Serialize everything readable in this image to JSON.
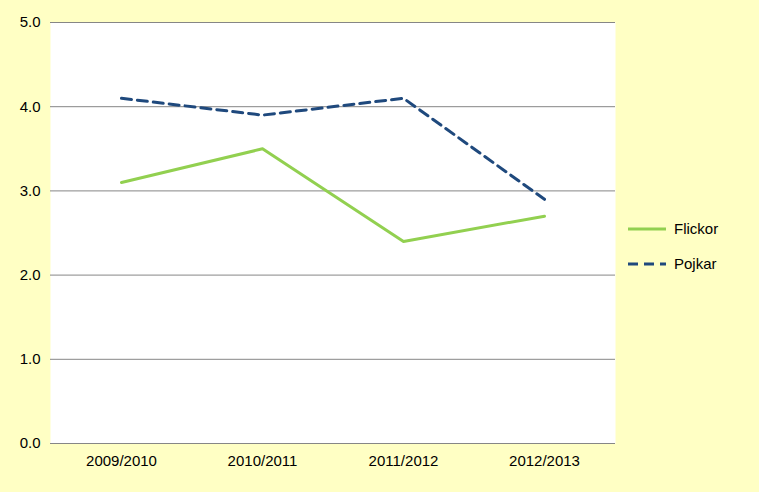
{
  "chart_data": {
    "type": "line",
    "categories": [
      "2009/2010",
      "2010/2011",
      "2011/2012",
      "2012/2013"
    ],
    "series": [
      {
        "name": "Flickor",
        "color": "#92D050",
        "line_style": "solid",
        "values": [
          3.1,
          3.5,
          2.4,
          2.7
        ]
      },
      {
        "name": "Pojkar",
        "color": "#1F497D",
        "line_style": "dashed",
        "values": [
          4.1,
          3.9,
          4.1,
          2.9
        ]
      }
    ],
    "ylim": [
      0,
      5
    ],
    "yticks": [
      0,
      1,
      2,
      3,
      4,
      5
    ],
    "grid": true,
    "legend": "right"
  }
}
